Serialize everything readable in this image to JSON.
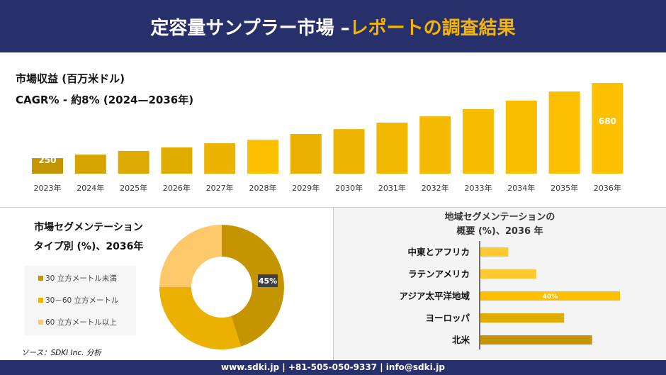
{
  "header": {
    "title_main": "定容量サンプラー市場 –",
    "title_highlight": "レポートの調査結果"
  },
  "colors": {
    "navy": "#28306b",
    "gold_dark": "#c49500",
    "gold": "#e0ac00",
    "gold_bright": "#fdc000",
    "gold_light": "#fdc86a"
  },
  "chart_data": [
    {
      "type": "bar",
      "title": "市場収益 (百万米ドル)",
      "subtitle": "CAGR% - 約8% (2024—2036年)",
      "categories": [
        "2023年",
        "2024年",
        "2025年",
        "2026年",
        "2027年",
        "2028年",
        "2029年",
        "2030年",
        "2031年",
        "2032年",
        "2033年",
        "2034年",
        "2035年",
        "2036年"
      ],
      "values": [
        250,
        270,
        291,
        311,
        335,
        355,
        388,
        416,
        453,
        489,
        530,
        579,
        631,
        680
      ],
      "data_labels": {
        "0": "250",
        "13": "680"
      }
    },
    {
      "type": "pie",
      "title": "市場セグメンテーション タイプ別 (%)、2036年",
      "donut": true,
      "slices": [
        {
          "name": "30 立方メートル未満",
          "value": 45,
          "label": "45%",
          "color": "#c49500"
        },
        {
          "name": "30－60 立方メートル",
          "value": 30,
          "color": "#ecb000"
        },
        {
          "name": "60 立方メートル以上",
          "value": 25,
          "color": "#fdc86a"
        }
      ],
      "legend": "left"
    },
    {
      "type": "bar",
      "orientation": "horizontal",
      "title": "地域セグメンテーションの 概要 (%)、2036 年",
      "categories": [
        "中東とアフリカ",
        "ラテンアメリカ",
        "アジア太平洋地域",
        "ヨーロッパ",
        "北米"
      ],
      "values": [
        8,
        16,
        40,
        24,
        32
      ],
      "data_labels": {
        "2": "40%"
      },
      "colors": [
        "#fdc832",
        "#fdc832",
        "#fdc000",
        "#e0ac00",
        "#c49500"
      ]
    }
  ],
  "seg_title_1": "市場セグメンテーション",
  "seg_title_2": "タイプ別 (%)、2036年",
  "reg_title_1": "地域セグメンテーションの",
  "reg_title_2": "概要 (%)、2036 年",
  "source": "ソース：SDKI Inc. 分析",
  "footer": "www.sdki.jp | +81-505-050-9337 | info@sdki.jp"
}
